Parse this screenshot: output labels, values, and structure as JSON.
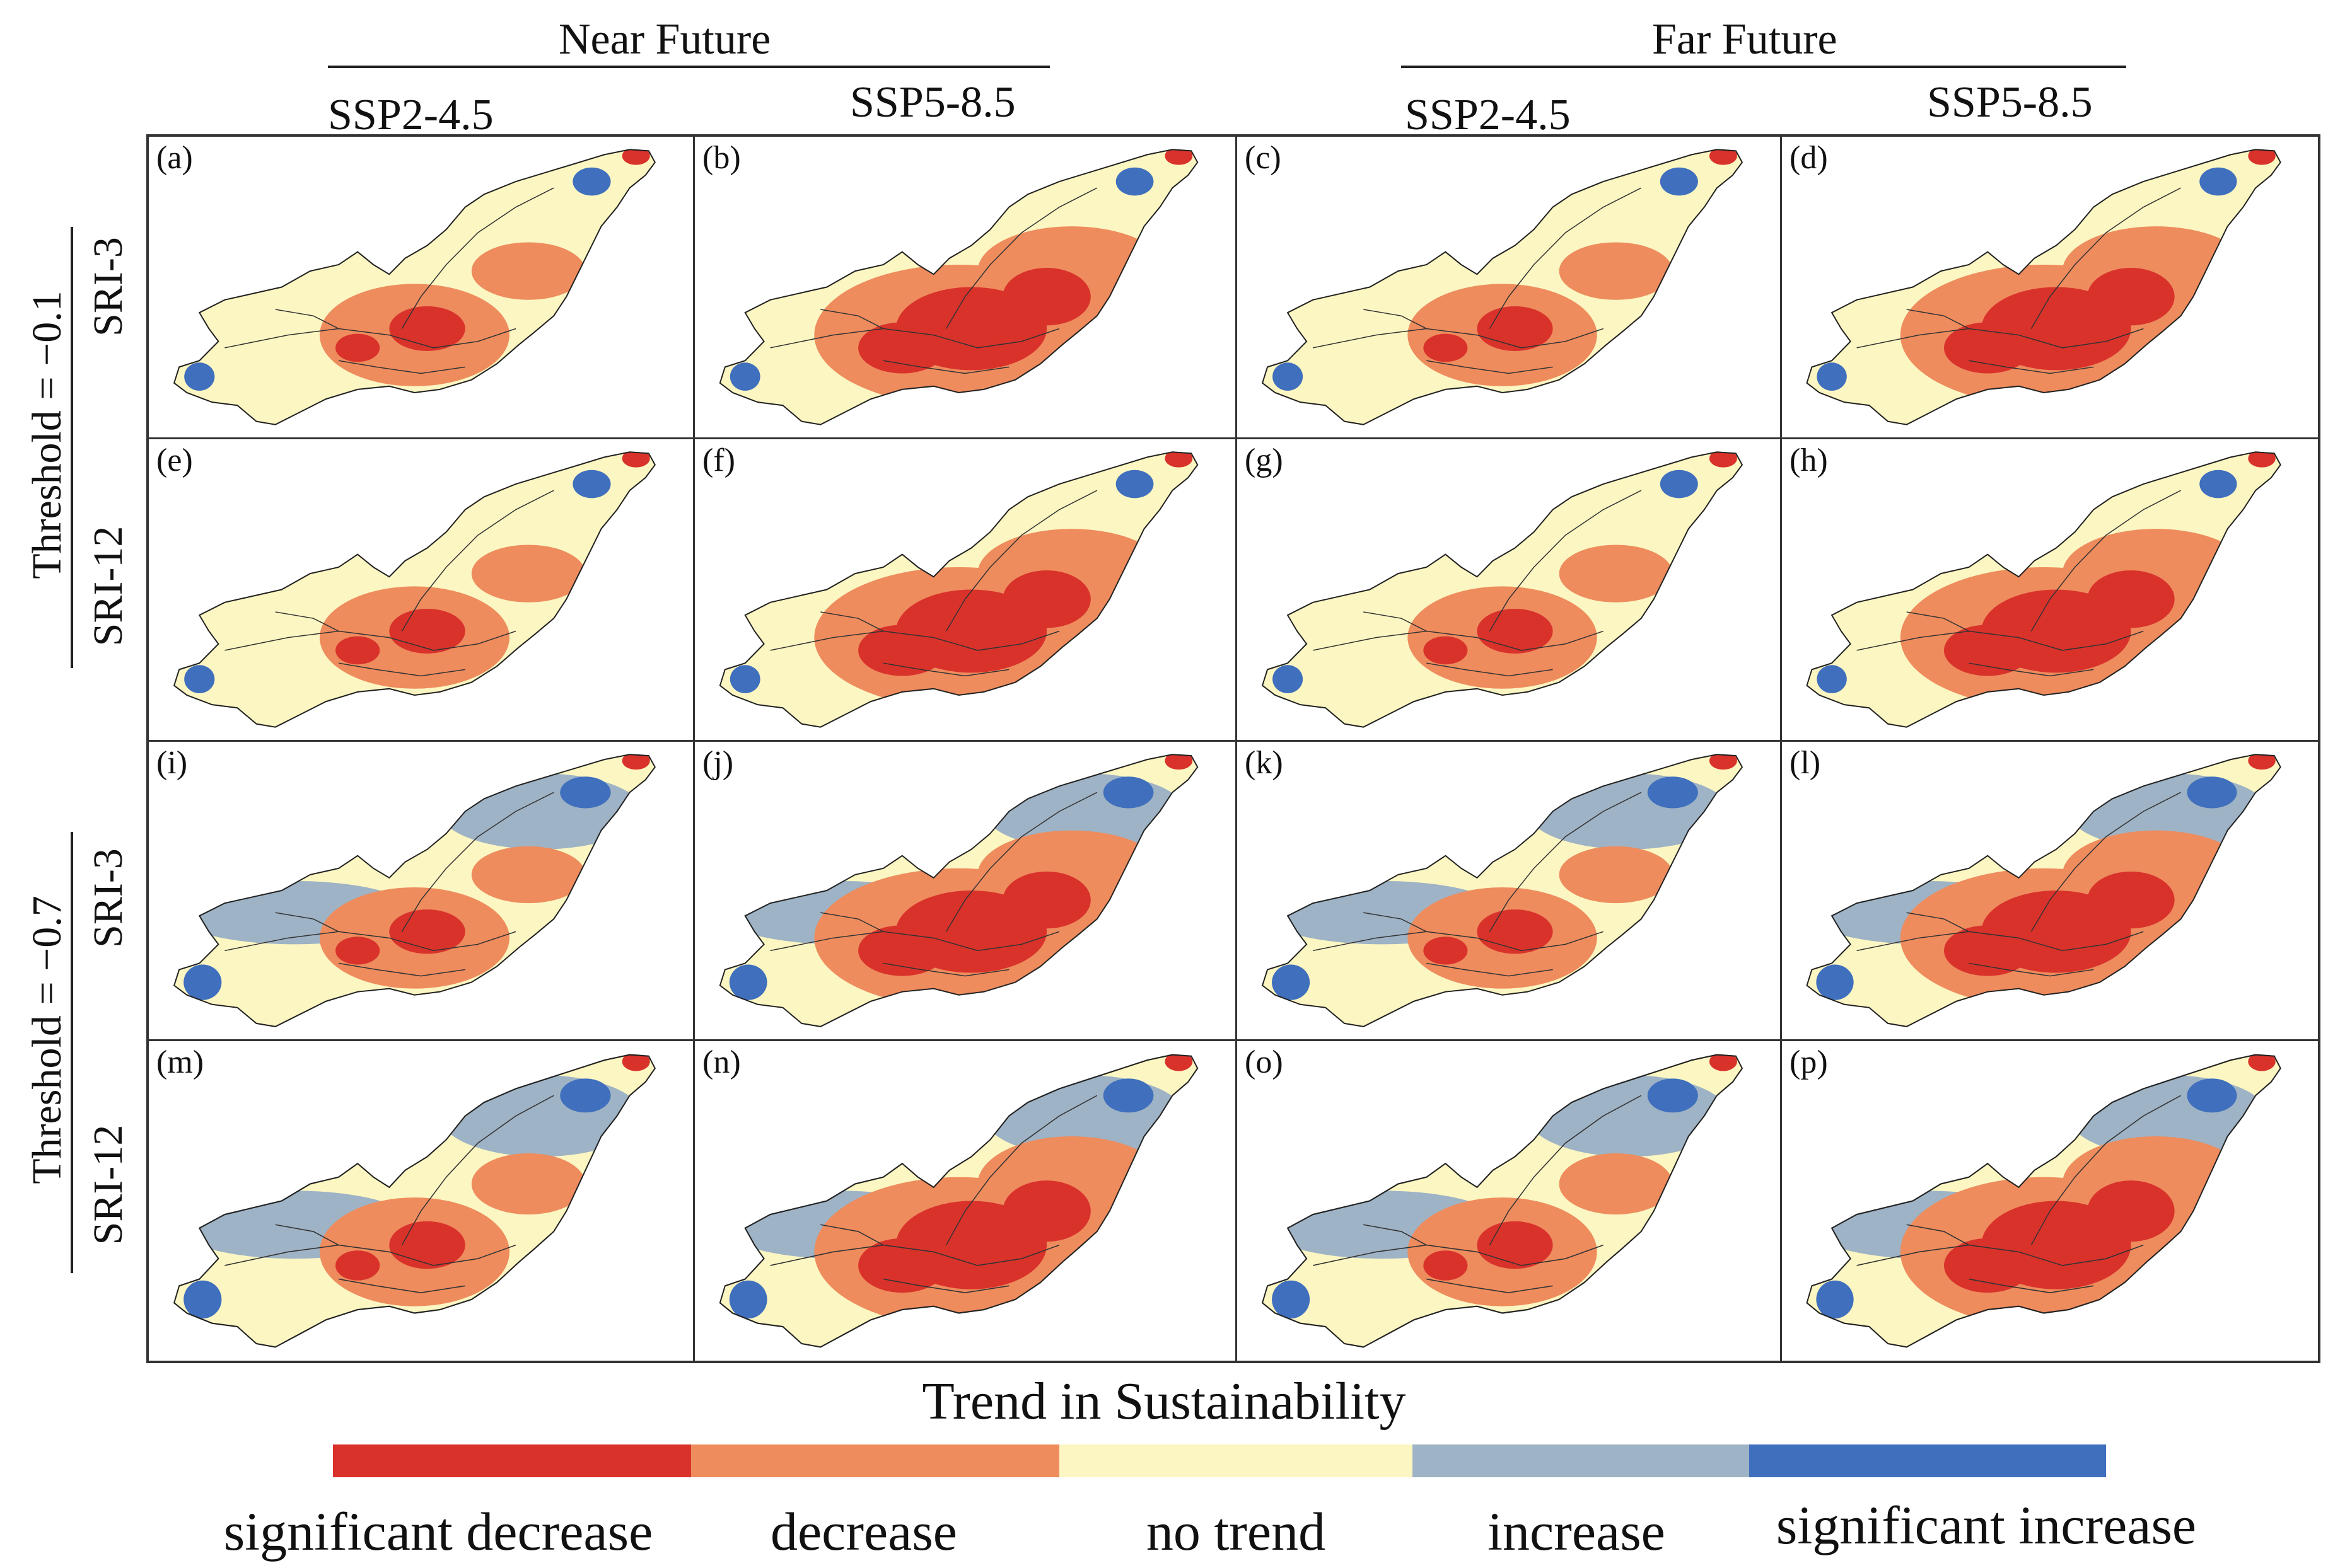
{
  "headers": {
    "near_future": "Near Future",
    "far_future": "Far Future",
    "ssp245_a": "SSP2-4.5",
    "ssp585_a": "SSP5-8.5",
    "ssp245_b": "SSP2-4.5",
    "ssp585_b": "SSP5-8.5"
  },
  "rows": {
    "threshold_top": "Threshold = −0.1",
    "threshold_bottom": "Threshold = −0.7",
    "sri3_a": "SRI-3",
    "sri12_a": "SRI-12",
    "sri3_b": "SRI-3",
    "sri12_b": "SRI-12"
  },
  "panels": [
    {
      "label": "(a)",
      "scenario": "Near Future SSP2-4.5, Threshold -0.1, SRI-3"
    },
    {
      "label": "(b)",
      "scenario": "Near Future SSP5-8.5, Threshold -0.1, SRI-3"
    },
    {
      "label": "(c)",
      "scenario": "Far Future SSP2-4.5, Threshold -0.1, SRI-3"
    },
    {
      "label": "(d)",
      "scenario": "Far Future SSP5-8.5, Threshold -0.1, SRI-3"
    },
    {
      "label": "(e)",
      "scenario": "Near Future SSP2-4.5, Threshold -0.1, SRI-12"
    },
    {
      "label": "(f)",
      "scenario": "Near Future SSP5-8.5, Threshold -0.1, SRI-12"
    },
    {
      "label": "(g)",
      "scenario": "Far Future SSP2-4.5, Threshold -0.1, SRI-12"
    },
    {
      "label": "(h)",
      "scenario": "Far Future SSP5-8.5, Threshold -0.1, SRI-12"
    },
    {
      "label": "(i)",
      "scenario": "Near Future SSP2-4.5, Threshold -0.7, SRI-3"
    },
    {
      "label": "(j)",
      "scenario": "Near Future SSP5-8.5, Threshold -0.7, SRI-3"
    },
    {
      "label": "(k)",
      "scenario": "Far Future SSP2-4.5, Threshold -0.7, SRI-3"
    },
    {
      "label": "(l)",
      "scenario": "Far Future SSP5-8.5, Threshold -0.7, SRI-3"
    },
    {
      "label": "(m)",
      "scenario": "Near Future SSP2-4.5, Threshold -0.7, SRI-12"
    },
    {
      "label": "(n)",
      "scenario": "Near Future SSP5-8.5, Threshold -0.7, SRI-12"
    },
    {
      "label": "(o)",
      "scenario": "Far Future SSP2-4.5, Threshold -0.7, SRI-12"
    },
    {
      "label": "(p)",
      "scenario": "Far Future SSP5-8.5, Threshold -0.7, SRI-12"
    }
  ],
  "legend": {
    "title": "Trend in Sustainability",
    "categories": [
      {
        "label": "significant decrease",
        "color": "#d9322b"
      },
      {
        "label": "decrease",
        "color": "#ee8c5e"
      },
      {
        "label": "no trend",
        "color": "#fcf6c2"
      },
      {
        "label": "increase",
        "color": "#9eb3c5"
      },
      {
        "label": "significant increase",
        "color": "#3f6fbd"
      }
    ]
  }
}
